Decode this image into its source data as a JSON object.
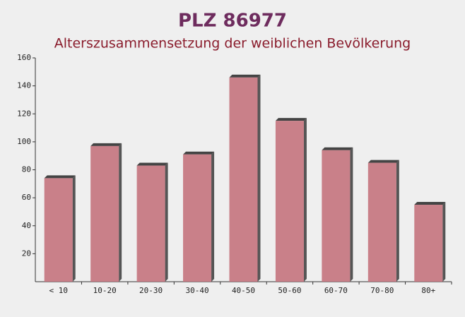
{
  "chart_data": {
    "type": "bar",
    "title": "PLZ 86977",
    "subtitle": "Alterszusammensetzung der weiblichen Bevölkerung",
    "categories": [
      "< 10",
      "10-20",
      "20-30",
      "30-40",
      "40-50",
      "50-60",
      "60-70",
      "70-80",
      "80+"
    ],
    "values": [
      74,
      97,
      83,
      91,
      146,
      115,
      94,
      85,
      55
    ],
    "color": "#c4737d",
    "ylim": [
      0,
      160
    ],
    "yticks": [
      20,
      40,
      60,
      80,
      100,
      120,
      140,
      160
    ]
  }
}
